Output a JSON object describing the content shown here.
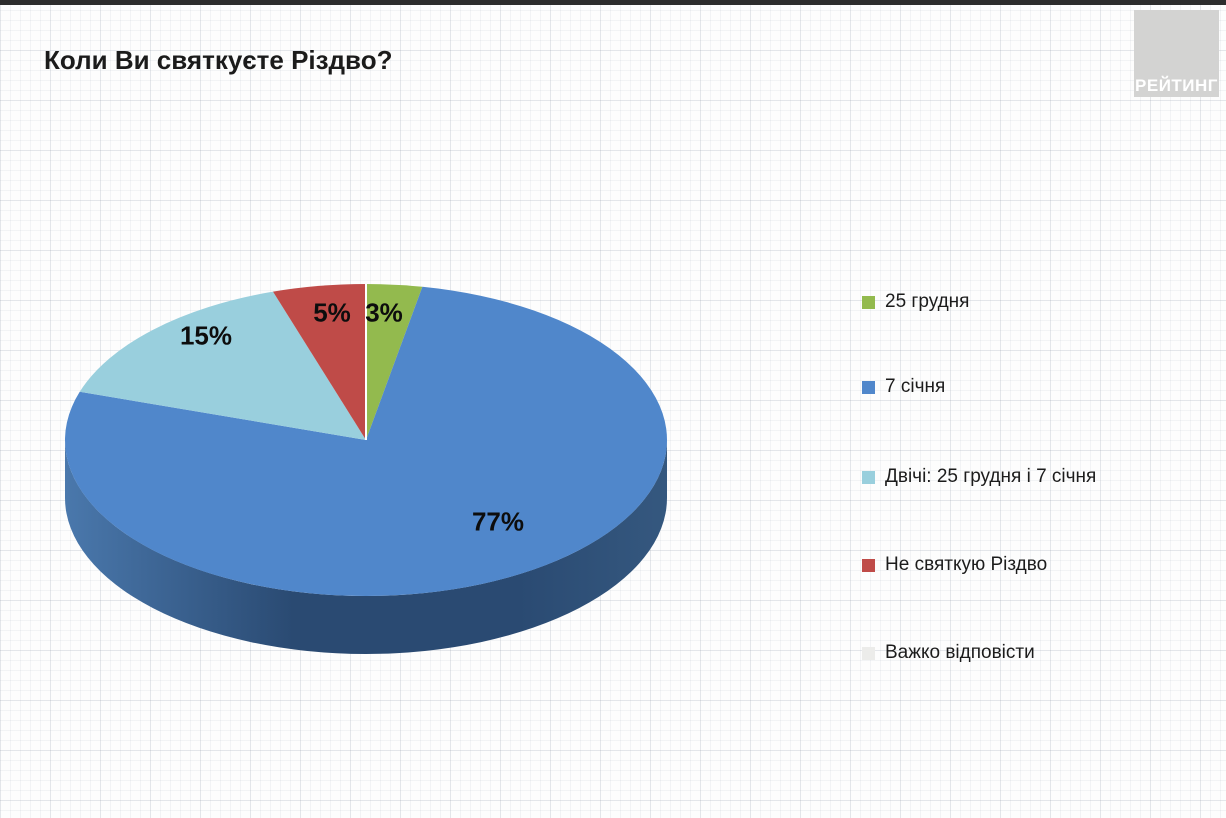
{
  "page": {
    "title": "Коли Ви святкуєте Різдво?",
    "logo_text": "РЕЙТИНГ"
  },
  "chart_data": {
    "type": "pie",
    "style": "3d-pie",
    "title": "Коли Ви святкуєте Різдво?",
    "unit": "%",
    "legend_position": "right",
    "start_angle_deg": 0,
    "direction": "clockwise",
    "series": [
      {
        "name": "25 грудня",
        "value": 3,
        "label": "3%",
        "color": "#93BA4E"
      },
      {
        "name": "7 січня",
        "value": 77,
        "label": "77%",
        "color": "#5087CB"
      },
      {
        "name": "Двічі: 25 грудня і 7 січня",
        "value": 15,
        "label": "15%",
        "color": "#99CFDD"
      },
      {
        "name": "Не святкую Різдво",
        "value": 5,
        "label": "5%",
        "color": "#BF4B48"
      },
      {
        "name": "Важко відповісти",
        "value": 0,
        "label": "",
        "color": "#ECECEA"
      }
    ],
    "colors": {
      "depth_left": "#4A78AC",
      "depth_dark": "#2A4A72",
      "depth_right": "#35587F",
      "slice_divider": "#FFFFFF"
    }
  }
}
